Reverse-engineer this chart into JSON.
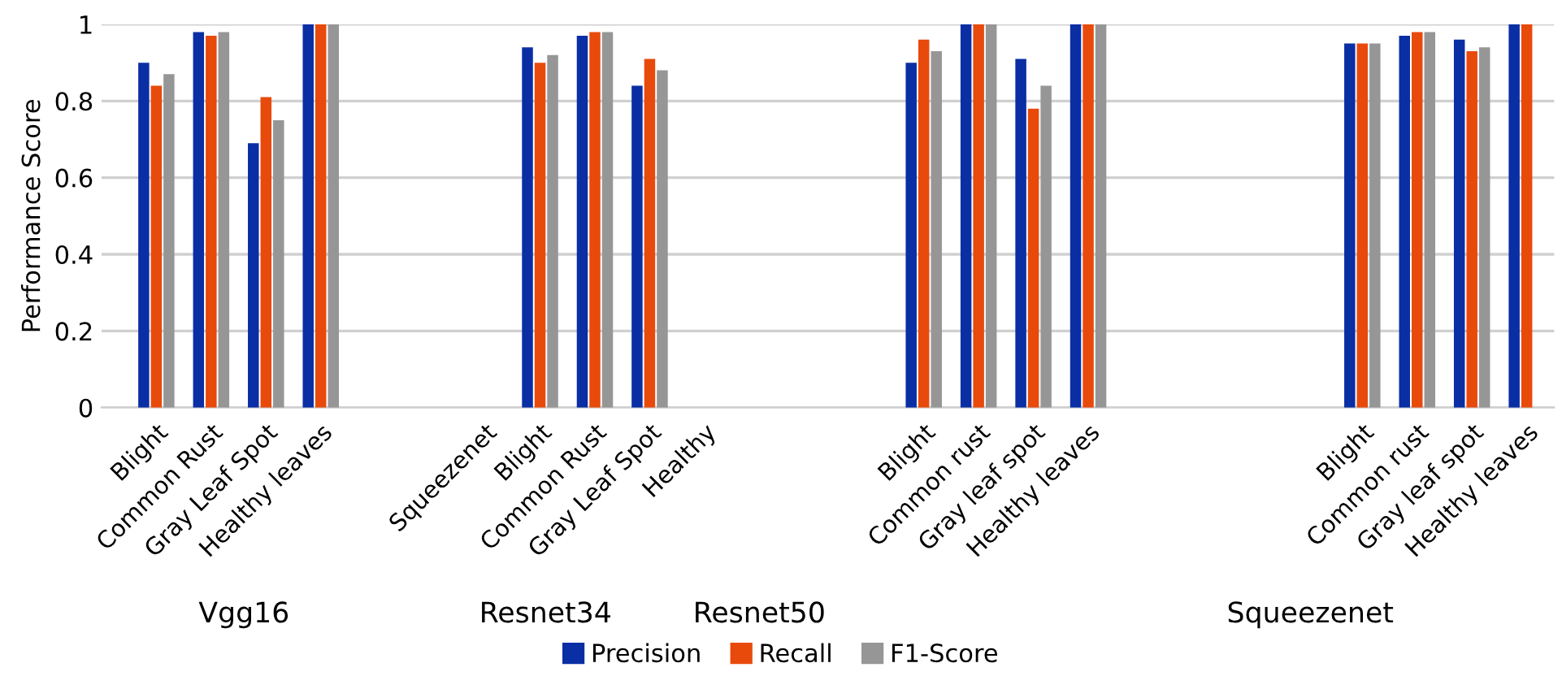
{
  "chart_data": {
    "type": "bar",
    "ylabel": "Performance Score",
    "categories": [
      "Blight",
      "Common Rust",
      "Gray Leaf Spot",
      "Healthy leaves",
      null,
      null,
      "Squeezenet",
      "Blight",
      "Common Rust",
      "Gray Leaf Spot",
      "Healthy",
      null,
      null,
      null,
      "Blight",
      "Common rust",
      "Gray leaf spot",
      "Healthy leaves",
      null,
      null,
      null,
      null,
      "Blight",
      "Common rust",
      "Gray leaf spot",
      "Healthy leaves"
    ],
    "series": [
      {
        "name": "Precision",
        "color": "#0a2ea4",
        "values": [
          0.9,
          0.98,
          0.69,
          1,
          null,
          null,
          null,
          0.94,
          0.97,
          0.84,
          null,
          null,
          null,
          null,
          0.9,
          1,
          0.91,
          1,
          null,
          null,
          null,
          null,
          0.95,
          0.97,
          0.96,
          1
        ]
      },
      {
        "name": "Recall",
        "color": "#e84a0c",
        "values": [
          0.84,
          0.97,
          0.81,
          1,
          null,
          null,
          null,
          0.9,
          0.98,
          0.91,
          null,
          null,
          null,
          null,
          0.96,
          1,
          0.78,
          1,
          null,
          null,
          null,
          null,
          0.95,
          0.98,
          0.93,
          1
        ]
      },
      {
        "name": "F1-Score",
        "color": "#969696",
        "values": [
          0.87,
          0.98,
          0.75,
          1,
          null,
          null,
          null,
          0.92,
          0.98,
          0.88,
          null,
          null,
          null,
          null,
          0.93,
          1,
          0.84,
          1,
          null,
          null,
          null,
          null,
          0.95,
          0.98,
          0.94,
          null
        ]
      }
    ],
    "annotations": [
      "Vgg16",
      "Resnet34",
      "Resnet50",
      "Squeezenet"
    ],
    "ylim": [
      0,
      1
    ],
    "yticks": [
      0,
      0.2,
      0.4,
      0.6,
      0.8,
      1
    ],
    "grid": "y",
    "legend": "bottom"
  }
}
